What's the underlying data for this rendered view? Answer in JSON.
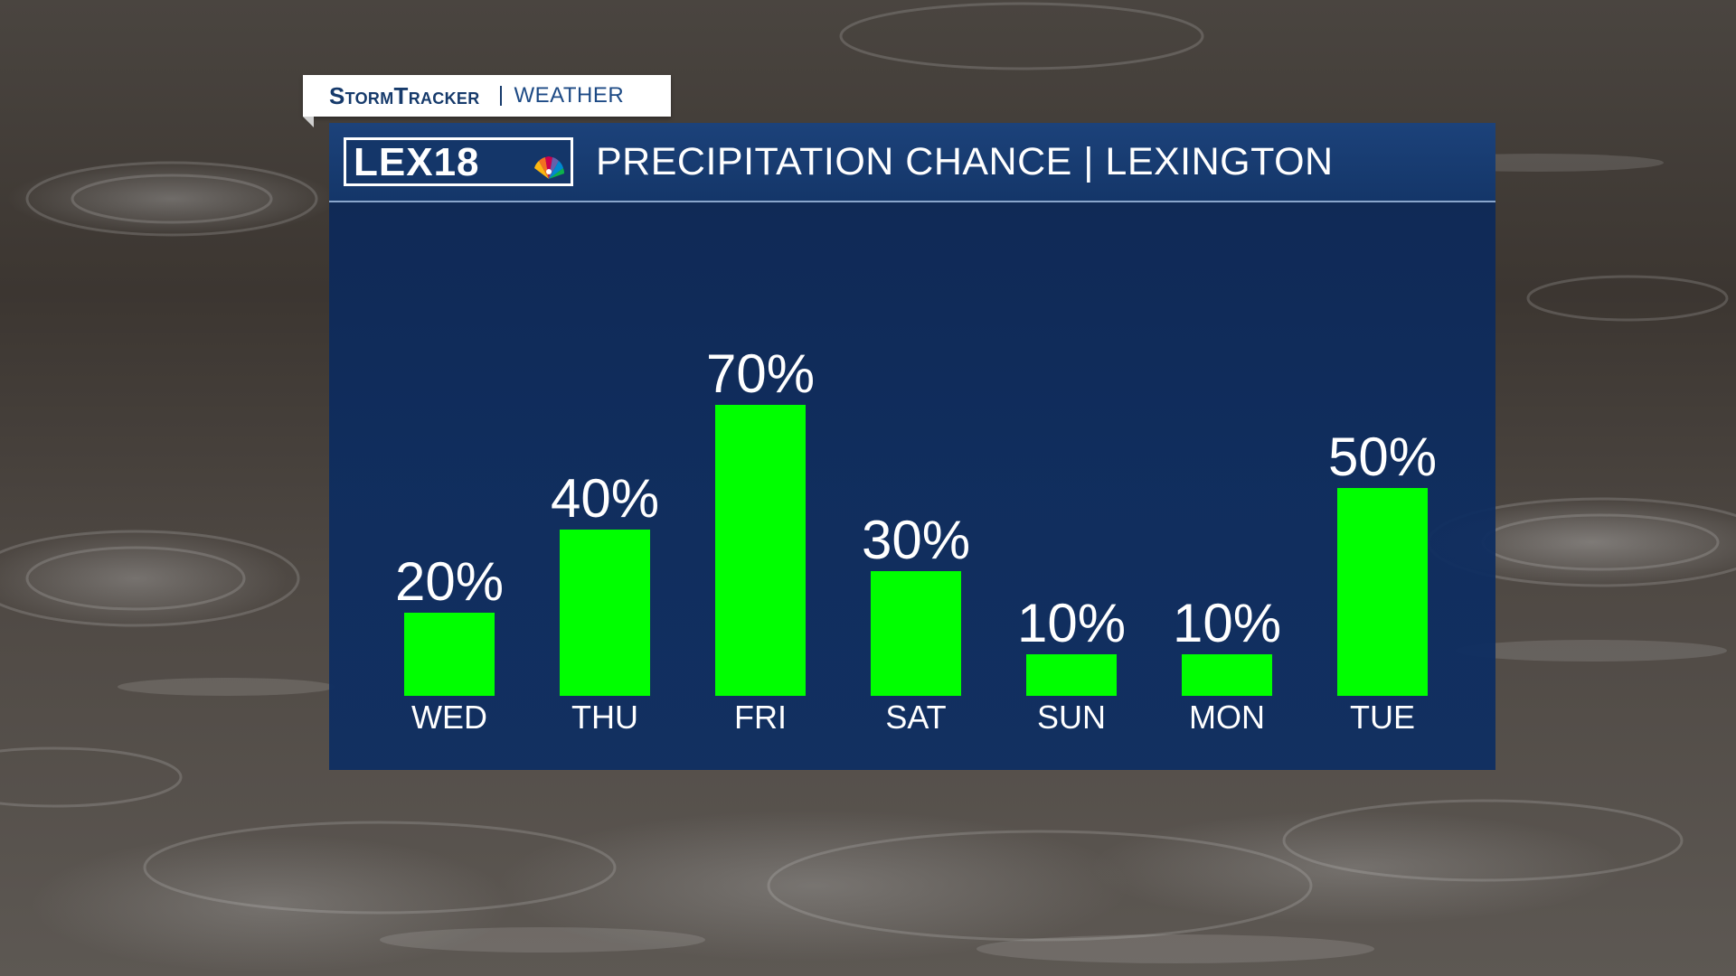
{
  "brand": {
    "name": "StormTracker",
    "section": "WEATHER"
  },
  "header": {
    "logo_text": "LEX18",
    "title": "PRECIPITATION CHANCE | LEXINGTON"
  },
  "colors": {
    "bar": "#00ff00",
    "panel": "#0e2c5c",
    "text": "#ffffff"
  },
  "chart_data": {
    "type": "bar",
    "categories": [
      "WED",
      "THU",
      "FRI",
      "SAT",
      "SUN",
      "MON",
      "TUE"
    ],
    "values": [
      20,
      40,
      70,
      30,
      10,
      10,
      50
    ],
    "value_labels": [
      "20%",
      "40%",
      "70%",
      "30%",
      "10%",
      "10%",
      "50%"
    ],
    "unit": "%",
    "ylim": [
      0,
      100
    ],
    "grid": false,
    "legend": "none"
  }
}
